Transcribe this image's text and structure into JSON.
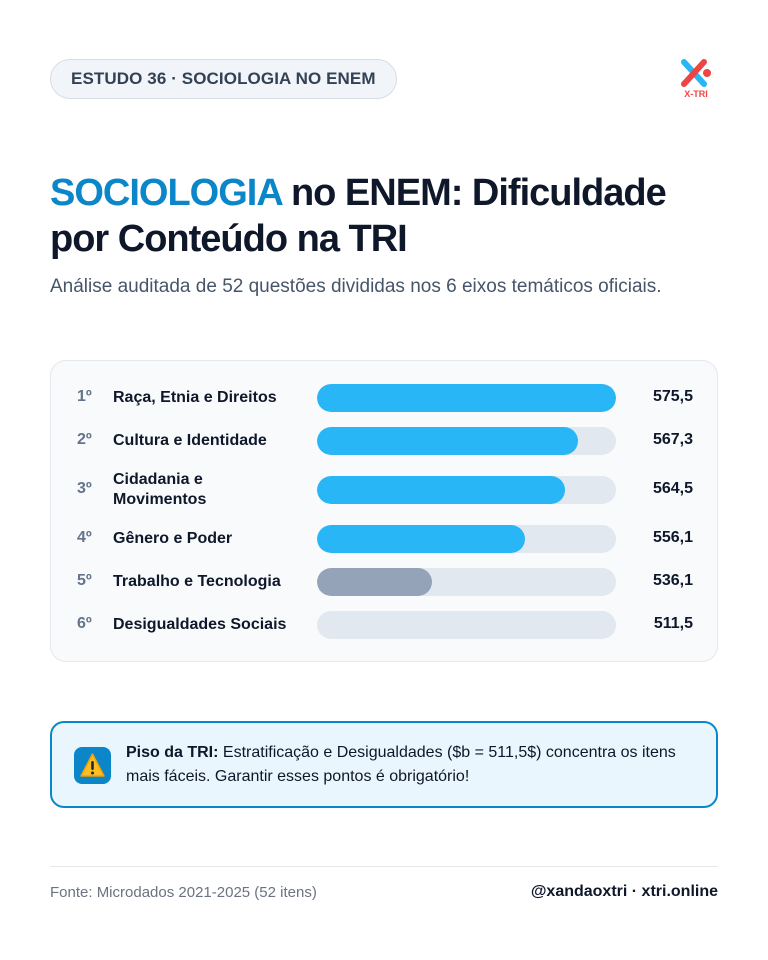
{
  "badge": "ESTUDO 36 · SOCIOLOGIA NO ENEM",
  "logo_text": "X-TRI",
  "title": {
    "accent": "SOCIOLOGIA",
    "line1_rest": " no ENEM: Dificuldade",
    "line2": "por Conteúdo na TRI"
  },
  "subtitle": "Análise auditada de 52 questões divididas nos 6 eixos temáticos oficiais.",
  "chart_data": {
    "type": "bar",
    "orientation": "horizontal",
    "categories": [
      "Raça, Etnia e Direitos",
      "Cultura e Identidade",
      "Cidadania e Movimentos",
      "Gênero e Poder",
      "Trabalho e Tecnologia",
      "Desigualdades Sociais"
    ],
    "ranks": [
      "1º",
      "2º",
      "3º",
      "4º",
      "5º",
      "6º"
    ],
    "values": [
      575.5,
      567.3,
      564.5,
      556.1,
      536.1,
      511.5
    ],
    "value_labels": [
      "575,5",
      "567,3",
      "564,5",
      "556,1",
      "536,1",
      "511,5"
    ],
    "xlim": [
      511.5,
      575.5
    ],
    "colors": [
      "#29b6f6",
      "#29b6f6",
      "#29b6f6",
      "#29b6f6",
      "#94a3b8",
      "#94a3b8"
    ],
    "track_color": "#e2e8f0"
  },
  "alert": {
    "title": "Piso da TRI:",
    "text": " Estratificação e Desigualdades ($b = 511,5$) concentra os itens mais fáceis. Garantir esses pontos é obrigatório!",
    "icon": "warning-icon"
  },
  "footer": {
    "source": "Fonte: Microdados 2021-2025 (52 itens)",
    "handle": "@xandaoxtri · xtri.online"
  },
  "colors": {
    "accent": "#0b86c8",
    "bar": "#29b6f6",
    "bar_muted": "#94a3b8"
  }
}
